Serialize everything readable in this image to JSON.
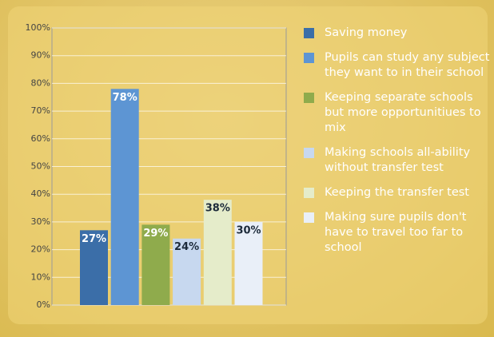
{
  "chart_data": {
    "type": "bar",
    "categories": [
      "Saving money",
      "Pupils can study any subject they want to in their school",
      "Keeping separate schools but more opportunitiues to mix",
      "Making schools all-ability without transfer test",
      "Keeping the transfer test",
      "Making sure pupils don't have to travel too far to school"
    ],
    "values": [
      27,
      78,
      29,
      24,
      38,
      30
    ],
    "value_labels": [
      "27%",
      "78%",
      "29%",
      "24%",
      "38%",
      "30%"
    ],
    "colors": [
      "#3b6ea8",
      "#5d95d3",
      "#8fab4c",
      "#c7d8ef",
      "#e5ecca",
      "#e9eff8"
    ],
    "ylim": [
      0,
      100
    ],
    "yticks": [
      {
        "value": 0,
        "label": "0%"
      },
      {
        "value": 10,
        "label": "10%"
      },
      {
        "value": 20,
        "label": "20%"
      },
      {
        "value": 30,
        "label": "30%"
      },
      {
        "value": 40,
        "label": "40%"
      },
      {
        "value": 50,
        "label": "50%"
      },
      {
        "value": 60,
        "label": "60%"
      },
      {
        "value": 70,
        "label": "70%"
      },
      {
        "value": 80,
        "label": "80%"
      },
      {
        "value": 90,
        "label": "90%"
      },
      {
        "value": 100,
        "label": "100%"
      }
    ],
    "grid": true
  }
}
